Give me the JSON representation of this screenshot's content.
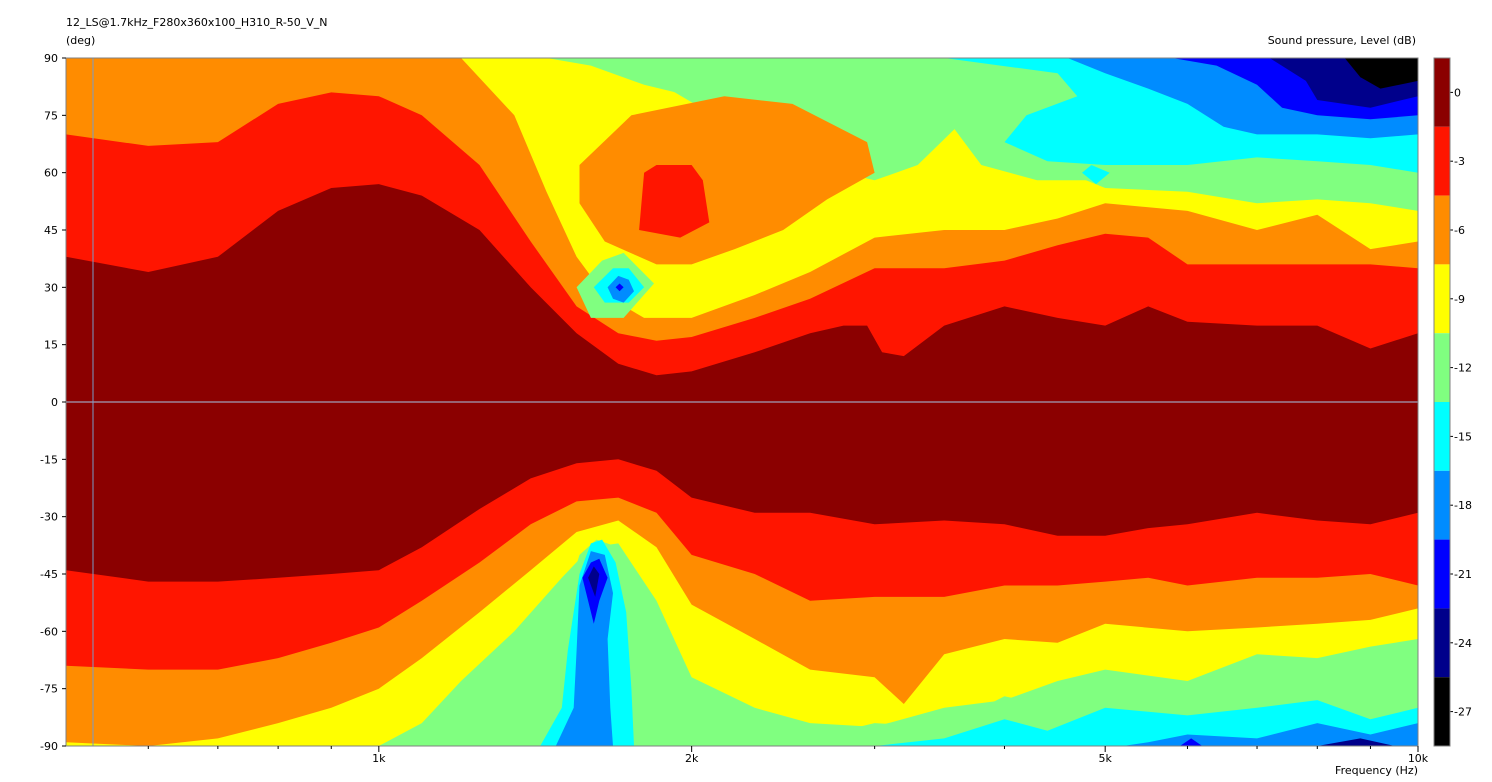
{
  "chart_data": {
    "type": "heatmap",
    "title": "12_LS@1.7kHz_F280x360x100_H310_R-50_V_N",
    "ylabel": "(deg)",
    "xlabel": "Frequency (Hz)",
    "colorbar_label": "Sound pressure, Level (dB)",
    "x_scale": "log",
    "xlim": [
      500,
      10000
    ],
    "ylim": [
      -90,
      90
    ],
    "x_ticks": [
      {
        "value": 1000,
        "label": "1k"
      },
      {
        "value": 2000,
        "label": "2k"
      },
      {
        "value": 5000,
        "label": "5k"
      },
      {
        "value": 10000,
        "label": "10k"
      }
    ],
    "x_minor_ticks": [
      600,
      700,
      800,
      900,
      3000,
      4000,
      6000,
      7000,
      8000,
      9000
    ],
    "y_ticks": [
      90,
      75,
      60,
      45,
      30,
      15,
      0,
      -15,
      -30,
      -45,
      -60,
      -75,
      -90
    ],
    "color_scale": [
      {
        "label": "0",
        "color": "#8b0000"
      },
      {
        "label": "-3",
        "color": "#ff1500"
      },
      {
        "label": "-6",
        "color": "#ff8c00"
      },
      {
        "label": "-9",
        "color": "#ffff00"
      },
      {
        "label": "-12",
        "color": "#80ff80"
      },
      {
        "label": "-15",
        "color": "#00ffff"
      },
      {
        "label": "-18",
        "color": "#008cff"
      },
      {
        "label": "-21",
        "color": "#0000ff"
      },
      {
        "label": "-24",
        "color": "#00008b"
      },
      {
        "label": "-27",
        "color": "#000000"
      }
    ],
    "level_bands": [
      {
        "level": "0",
        "upper": [
          [
            500,
            38
          ],
          [
            600,
            34
          ],
          [
            700,
            38
          ],
          [
            800,
            50
          ],
          [
            900,
            56
          ],
          [
            1000,
            57
          ],
          [
            1100,
            54
          ],
          [
            1250,
            45
          ],
          [
            1400,
            30
          ],
          [
            1550,
            18
          ],
          [
            1700,
            10
          ],
          [
            1850,
            7
          ],
          [
            2000,
            8
          ],
          [
            2300,
            13
          ],
          [
            2600,
            18
          ],
          [
            2800,
            20
          ],
          [
            2950,
            20
          ],
          [
            3050,
            13
          ],
          [
            3200,
            12
          ],
          [
            3500,
            20
          ],
          [
            4000,
            25
          ],
          [
            4500,
            22
          ],
          [
            5000,
            20
          ],
          [
            5500,
            25
          ],
          [
            6000,
            21
          ],
          [
            7000,
            20
          ],
          [
            8000,
            20
          ],
          [
            9000,
            14
          ],
          [
            10000,
            18
          ]
        ],
        "lower": [
          [
            500,
            -44
          ],
          [
            600,
            -47
          ],
          [
            700,
            -47
          ],
          [
            800,
            -46
          ],
          [
            900,
            -45
          ],
          [
            1000,
            -44
          ],
          [
            1100,
            -38
          ],
          [
            1250,
            -28
          ],
          [
            1400,
            -20
          ],
          [
            1550,
            -16
          ],
          [
            1700,
            -15
          ],
          [
            1850,
            -18
          ],
          [
            2000,
            -25
          ],
          [
            2300,
            -29
          ],
          [
            2600,
            -29
          ],
          [
            3000,
            -32
          ],
          [
            3500,
            -31
          ],
          [
            4000,
            -32
          ],
          [
            4500,
            -35
          ],
          [
            5000,
            -35
          ],
          [
            5500,
            -33
          ],
          [
            6000,
            -32
          ],
          [
            7000,
            -29
          ],
          [
            8000,
            -31
          ],
          [
            9000,
            -32
          ],
          [
            10000,
            -29
          ]
        ]
      },
      {
        "level": "-3",
        "upper": [
          [
            500,
            70
          ],
          [
            600,
            67
          ],
          [
            700,
            68
          ],
          [
            800,
            78
          ],
          [
            900,
            81
          ],
          [
            1000,
            80
          ],
          [
            1100,
            75
          ],
          [
            1250,
            62
          ],
          [
            1400,
            42
          ],
          [
            1550,
            25
          ],
          [
            1700,
            18
          ],
          [
            1850,
            16
          ],
          [
            2000,
            17
          ],
          [
            2300,
            22
          ],
          [
            2600,
            27
          ],
          [
            3000,
            35
          ],
          [
            3500,
            35
          ],
          [
            4000,
            37
          ],
          [
            4500,
            41
          ],
          [
            5000,
            44
          ],
          [
            5500,
            43
          ],
          [
            6000,
            36
          ],
          [
            7000,
            36
          ],
          [
            8000,
            36
          ],
          [
            9000,
            36
          ],
          [
            10000,
            35
          ]
        ],
        "lower": [
          [
            500,
            -69
          ],
          [
            600,
            -70
          ],
          [
            700,
            -70
          ],
          [
            800,
            -67
          ],
          [
            900,
            -63
          ],
          [
            1000,
            -59
          ],
          [
            1100,
            -52
          ],
          [
            1250,
            -42
          ],
          [
            1400,
            -32
          ],
          [
            1550,
            -26
          ],
          [
            1700,
            -25
          ],
          [
            1850,
            -29
          ],
          [
            2000,
            -40
          ],
          [
            2300,
            -45
          ],
          [
            2600,
            -52
          ],
          [
            3000,
            -51
          ],
          [
            3500,
            -51
          ],
          [
            4000,
            -48
          ],
          [
            4500,
            -48
          ],
          [
            5000,
            -47
          ],
          [
            5500,
            -46
          ],
          [
            6000,
            -48
          ],
          [
            7000,
            -46
          ],
          [
            8000,
            -46
          ],
          [
            9000,
            -45
          ],
          [
            10000,
            -48
          ]
        ]
      },
      {
        "level": "-6",
        "upper": [
          [
            500,
            90
          ],
          [
            700,
            90
          ],
          [
            900,
            90
          ],
          [
            1050,
            90
          ],
          [
            1200,
            90
          ],
          [
            1350,
            75
          ],
          [
            1450,
            55
          ],
          [
            1550,
            38
          ],
          [
            1650,
            28
          ],
          [
            1800,
            22
          ],
          [
            2000,
            22
          ],
          [
            2300,
            28
          ],
          [
            2600,
            34
          ],
          [
            3000,
            43
          ],
          [
            3500,
            45
          ],
          [
            4000,
            45
          ],
          [
            4500,
            48
          ],
          [
            5000,
            52
          ],
          [
            6000,
            50
          ],
          [
            7000,
            45
          ],
          [
            8000,
            49
          ],
          [
            9000,
            40
          ],
          [
            10000,
            42
          ]
        ],
        "lower": [
          [
            500,
            -89
          ],
          [
            600,
            -90
          ],
          [
            700,
            -88
          ],
          [
            800,
            -84
          ],
          [
            900,
            -80
          ],
          [
            1000,
            -75
          ],
          [
            1100,
            -67
          ],
          [
            1250,
            -55
          ],
          [
            1400,
            -44
          ],
          [
            1550,
            -34
          ],
          [
            1700,
            -31
          ],
          [
            1850,
            -38
          ],
          [
            2000,
            -53
          ],
          [
            2300,
            -62
          ],
          [
            2600,
            -70
          ],
          [
            3000,
            -72
          ],
          [
            3200,
            -79
          ],
          [
            3500,
            -66
          ],
          [
            4000,
            -62
          ],
          [
            4500,
            -63
          ],
          [
            5000,
            -58
          ],
          [
            6000,
            -60
          ],
          [
            7000,
            -59
          ],
          [
            8000,
            -58
          ],
          [
            9000,
            -57
          ],
          [
            10000,
            -54
          ]
        ]
      },
      {
        "level": "-9",
        "upper": [
          [
            500,
            90
          ],
          [
            1200,
            90
          ],
          [
            1300,
            90
          ],
          [
            1450,
            90
          ],
          [
            1600,
            88
          ],
          [
            1800,
            83
          ],
          [
            2000,
            80
          ],
          [
            2400,
            78
          ],
          [
            2800,
            78
          ],
          [
            3200,
            77
          ],
          [
            3700,
            76
          ],
          [
            4200,
            72
          ],
          [
            4600,
            60
          ],
          [
            5000,
            56
          ],
          [
            6000,
            55
          ],
          [
            7000,
            52
          ],
          [
            8000,
            53
          ],
          [
            9000,
            52
          ],
          [
            10000,
            50
          ]
        ],
        "lower": [
          [
            500,
            -90
          ],
          [
            1000,
            -90
          ],
          [
            1100,
            -84
          ],
          [
            1200,
            -73
          ],
          [
            1350,
            -60
          ],
          [
            1500,
            -46
          ],
          [
            1600,
            -38
          ],
          [
            1700,
            -37
          ],
          [
            1850,
            -52
          ],
          [
            2000,
            -72
          ],
          [
            2300,
            -80
          ],
          [
            2600,
            -84
          ],
          [
            3000,
            -85
          ],
          [
            3500,
            -80
          ],
          [
            4000,
            -78
          ],
          [
            4500,
            -73
          ],
          [
            5000,
            -70
          ],
          [
            6000,
            -73
          ],
          [
            7000,
            -66
          ],
          [
            8000,
            -67
          ],
          [
            9000,
            -64
          ],
          [
            10000,
            -62
          ]
        ]
      }
    ],
    "features": [
      {
        "note": "orange pocket with red core",
        "center": [
          1900,
          55
        ],
        "levels": [
          "-6",
          "-3"
        ]
      },
      {
        "note": "deep null",
        "center": [
          1700,
          30
        ],
        "levels": [
          "-12",
          "-15",
          "-18",
          "-21"
        ]
      },
      {
        "note": "deep null",
        "center": [
          1600,
          -45
        ],
        "levels": [
          "-12",
          "-15",
          "-18",
          "-21",
          "-24"
        ]
      }
    ]
  }
}
